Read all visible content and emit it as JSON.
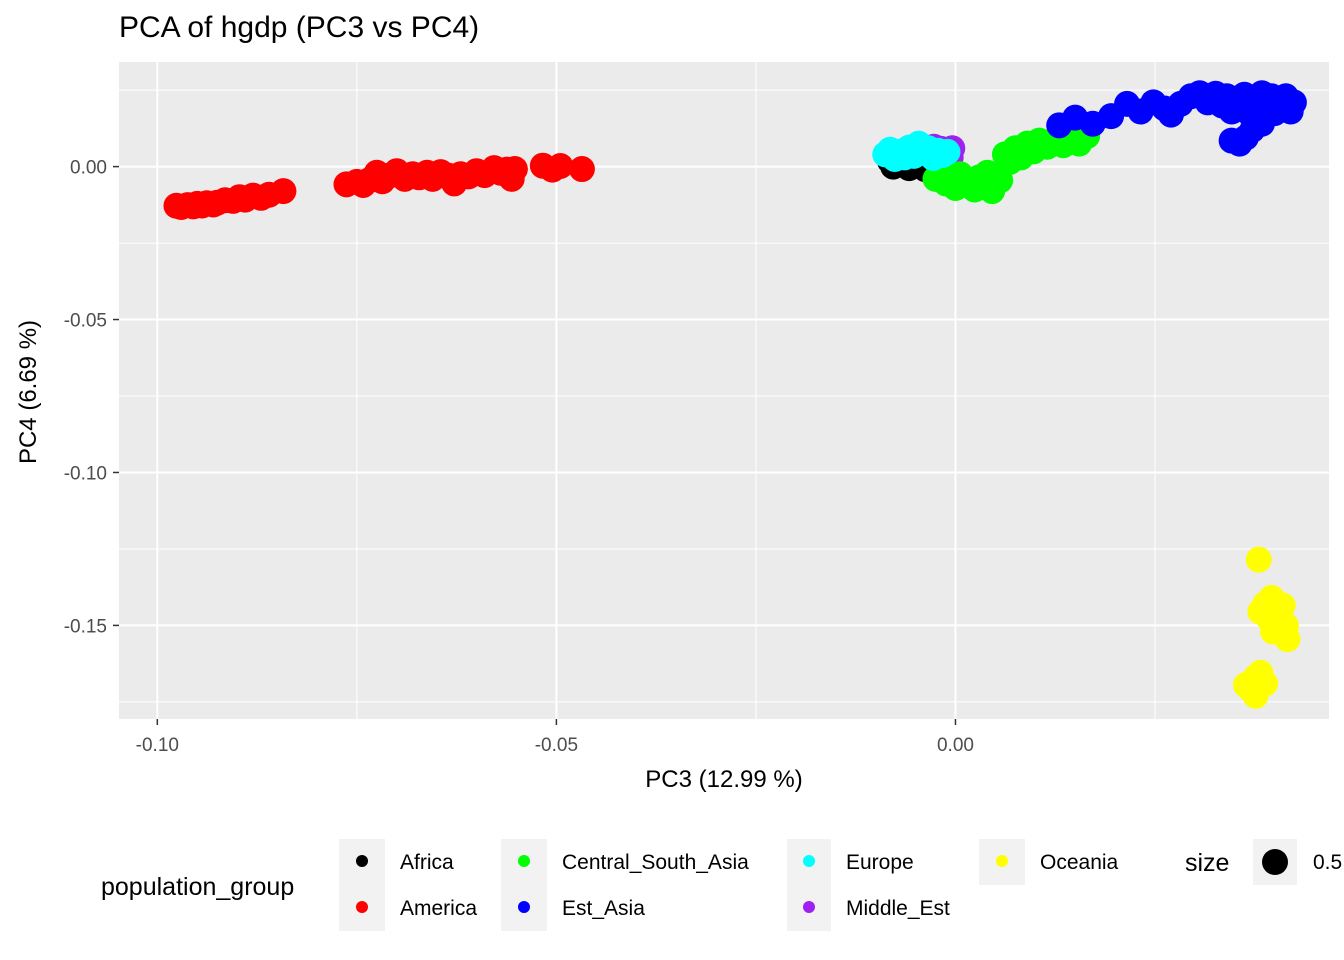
{
  "chart_data": {
    "type": "scatter",
    "title": "PCA of hgdp (PC3 vs PC4)",
    "xlabel": "PC3 (12.99 %)",
    "ylabel": "PC4 (6.69 %)",
    "xlim": [
      -0.1048,
      0.0468
    ],
    "ylim": [
      -0.1806,
      0.0342
    ],
    "x_ticks": [
      -0.1,
      -0.05,
      0.0
    ],
    "x_tick_labels": [
      "-0.10",
      "-0.05",
      "0.00"
    ],
    "y_ticks": [
      0.0,
      -0.05,
      -0.1,
      -0.15
    ],
    "y_tick_labels": [
      "0.00",
      "-0.05",
      "-0.10",
      "-0.15"
    ],
    "grid": true,
    "legend": {
      "title": "population_group",
      "position": "bottom",
      "entries": [
        "Africa",
        "America",
        "Central_South_Asia",
        "Est_Asia",
        "Europe",
        "Middle_Est",
        "Oceania"
      ],
      "size_title": "size",
      "size_label": "0.5"
    },
    "series": [
      {
        "name": "America",
        "color": "#ff0000",
        "points": [
          [
            -0.0976,
            -0.0128
          ],
          [
            -0.097,
            -0.0132
          ],
          [
            -0.0962,
            -0.0126
          ],
          [
            -0.0955,
            -0.013
          ],
          [
            -0.095,
            -0.0122
          ],
          [
            -0.0944,
            -0.0127
          ],
          [
            -0.0938,
            -0.012
          ],
          [
            -0.093,
            -0.0124
          ],
          [
            -0.0925,
            -0.0118
          ],
          [
            -0.0915,
            -0.011
          ],
          [
            -0.0905,
            -0.0112
          ],
          [
            -0.0897,
            -0.01
          ],
          [
            -0.089,
            -0.0108
          ],
          [
            -0.088,
            -0.0095
          ],
          [
            -0.087,
            -0.0102
          ],
          [
            -0.086,
            -0.0092
          ],
          [
            -0.0842,
            -0.008
          ],
          [
            -0.0763,
            -0.0058
          ],
          [
            -0.075,
            -0.005
          ],
          [
            -0.0742,
            -0.006
          ],
          [
            -0.0735,
            -0.0045
          ],
          [
            -0.0725,
            -0.002
          ],
          [
            -0.0718,
            -0.0048
          ],
          [
            -0.071,
            -0.003
          ],
          [
            -0.07,
            -0.0015
          ],
          [
            -0.069,
            -0.004
          ],
          [
            -0.068,
            -0.0025
          ],
          [
            -0.0672,
            -0.0035
          ],
          [
            -0.0662,
            -0.002
          ],
          [
            -0.0655,
            -0.004
          ],
          [
            -0.0645,
            -0.0018
          ],
          [
            -0.0635,
            -0.003
          ],
          [
            -0.0628,
            -0.0055
          ],
          [
            -0.062,
            -0.0025
          ],
          [
            -0.061,
            -0.0032
          ],
          [
            -0.06,
            -0.0015
          ],
          [
            -0.059,
            -0.0028
          ],
          [
            -0.0578,
            -0.0005
          ],
          [
            -0.057,
            -0.002
          ],
          [
            -0.0562,
            -0.001
          ],
          [
            -0.0556,
            -0.004
          ],
          [
            -0.0552,
            -0.0008
          ],
          [
            -0.0517,
            0.0003
          ],
          [
            -0.0505,
            -0.001
          ],
          [
            -0.0495,
            0.0002
          ],
          [
            -0.0468,
            -0.0008
          ]
        ]
      },
      {
        "name": "Africa",
        "color": "#000000",
        "points": [
          [
            -0.0082,
            0.0018
          ],
          [
            -0.0078,
            0.0
          ],
          [
            -0.0074,
            0.0035
          ],
          [
            -0.007,
            0.0012
          ],
          [
            -0.0066,
            0.005
          ],
          [
            -0.0062,
            0.0022
          ],
          [
            -0.0058,
            -0.0005
          ],
          [
            -0.0054,
            0.004
          ],
          [
            -0.005,
            0.0028
          ],
          [
            -0.0046,
            0.001
          ],
          [
            -0.0042,
            0.0045
          ],
          [
            -0.0038,
            -0.0008
          ],
          [
            -0.0035,
            0.002
          ]
        ]
      },
      {
        "name": "Middle_Est",
        "color": "#a020f0",
        "points": [
          [
            -0.0032,
            0.005
          ],
          [
            -0.0027,
            0.0065
          ],
          [
            -0.0022,
            0.004
          ],
          [
            -0.0018,
            0.0058
          ],
          [
            -0.0014,
            0.0038
          ],
          [
            -0.001,
            0.0052
          ],
          [
            -0.0006,
            0.003
          ],
          [
            -0.0004,
            0.006
          ]
        ]
      },
      {
        "name": "Central_South_Asia",
        "color": "#00ff00",
        "points": [
          [
            -0.0025,
            -0.004
          ],
          [
            -0.0018,
            -0.001
          ],
          [
            -0.0012,
            -0.0055
          ],
          [
            -0.0006,
            -0.003
          ],
          [
            0.0,
            -0.007
          ],
          [
            0.0006,
            -0.0025
          ],
          [
            0.0012,
            -0.006
          ],
          [
            0.0018,
            -0.0045
          ],
          [
            0.0024,
            -0.0075
          ],
          [
            0.003,
            -0.0035
          ],
          [
            0.0036,
            -0.0055
          ],
          [
            0.004,
            -0.002
          ],
          [
            0.0046,
            -0.008
          ],
          [
            0.005,
            -0.005
          ],
          [
            0.0056,
            -0.0045
          ],
          [
            0.0062,
            0.004
          ],
          [
            0.0068,
            0.0015
          ],
          [
            0.0075,
            0.006
          ],
          [
            0.0082,
            0.003
          ],
          [
            0.009,
            0.0075
          ],
          [
            0.0098,
            0.005
          ],
          [
            0.0105,
            0.0085
          ],
          [
            0.0115,
            0.0065
          ],
          [
            0.0125,
            0.009
          ],
          [
            0.0135,
            0.007
          ],
          [
            0.0145,
            0.0095
          ],
          [
            0.0155,
            0.0075
          ],
          [
            0.0165,
            0.01
          ]
        ]
      },
      {
        "name": "Europe",
        "color": "#00ffff",
        "points": [
          [
            -0.0088,
            0.004
          ],
          [
            -0.0082,
            0.0055
          ],
          [
            -0.0076,
            0.0025
          ],
          [
            -0.007,
            0.0048
          ],
          [
            -0.0064,
            0.003
          ],
          [
            -0.0058,
            0.0062
          ],
          [
            -0.0052,
            0.0035
          ],
          [
            -0.0046,
            0.0075
          ],
          [
            -0.004,
            0.0045
          ],
          [
            -0.0034,
            0.006
          ],
          [
            -0.0028,
            0.0028
          ],
          [
            -0.0022,
            0.0052
          ],
          [
            -0.0016,
            0.0038
          ],
          [
            -0.001,
            0.0048
          ]
        ]
      },
      {
        "name": "Est_Asia",
        "color": "#0000ff",
        "points": [
          [
            0.013,
            0.0135
          ],
          [
            0.015,
            0.016
          ],
          [
            0.0172,
            0.014
          ],
          [
            0.0195,
            0.0165
          ],
          [
            0.0215,
            0.0205
          ],
          [
            0.0232,
            0.018
          ],
          [
            0.0248,
            0.021
          ],
          [
            0.0262,
            0.019
          ],
          [
            0.027,
            0.017
          ],
          [
            0.0282,
            0.0205
          ],
          [
            0.0295,
            0.023
          ],
          [
            0.0306,
            0.024
          ],
          [
            0.0316,
            0.021
          ],
          [
            0.0326,
            0.0238
          ],
          [
            0.0334,
            0.02
          ],
          [
            0.034,
            0.023
          ],
          [
            0.0346,
            0.018
          ],
          [
            0.035,
            0.021
          ],
          [
            0.0356,
            0.0195
          ],
          [
            0.0362,
            0.0235
          ],
          [
            0.0368,
            0.0175
          ],
          [
            0.0374,
            0.022
          ],
          [
            0.038,
            0.019
          ],
          [
            0.0384,
            0.024
          ],
          [
            0.039,
            0.0205
          ],
          [
            0.0396,
            0.023
          ],
          [
            0.04,
            0.0175
          ],
          [
            0.0404,
            0.0215
          ],
          [
            0.041,
            0.0195
          ],
          [
            0.0414,
            0.023
          ],
          [
            0.042,
            0.018
          ],
          [
            0.0424,
            0.021
          ],
          [
            0.0346,
            0.0085
          ],
          [
            0.0356,
            0.0075
          ],
          [
            0.0364,
            0.0095
          ],
          [
            0.0372,
            0.012
          ],
          [
            0.0384,
            0.014
          ]
        ]
      },
      {
        "name": "Oceania",
        "color": "#ffff00",
        "points": [
          [
            0.038,
            -0.1285
          ],
          [
            0.0382,
            -0.1455
          ],
          [
            0.0388,
            -0.143
          ],
          [
            0.0392,
            -0.1475
          ],
          [
            0.0396,
            -0.141
          ],
          [
            0.0402,
            -0.145
          ],
          [
            0.0406,
            -0.149
          ],
          [
            0.041,
            -0.1435
          ],
          [
            0.0398,
            -0.152
          ],
          [
            0.0404,
            -0.1505
          ],
          [
            0.0414,
            -0.15
          ],
          [
            0.0416,
            -0.1545
          ],
          [
            0.0364,
            -0.1695
          ],
          [
            0.037,
            -0.171
          ],
          [
            0.0376,
            -0.167
          ],
          [
            0.0382,
            -0.1655
          ],
          [
            0.0388,
            -0.169
          ],
          [
            0.0376,
            -0.173
          ]
        ]
      }
    ]
  }
}
